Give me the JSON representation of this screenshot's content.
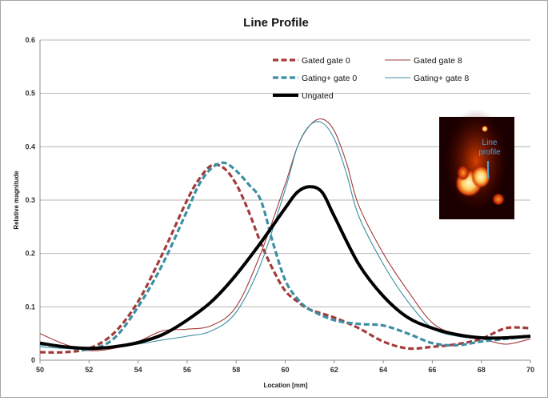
{
  "chart_data": {
    "type": "line",
    "title": "Line Profile",
    "xlabel": "Location [mm]",
    "ylabel": "Relative magnitude",
    "xlim": [
      50,
      70
    ],
    "ylim": [
      0,
      0.6
    ],
    "x_ticks": [
      "50",
      "52",
      "54",
      "56",
      "58",
      "60",
      "62",
      "64",
      "66",
      "68",
      "70"
    ],
    "y_ticks": [
      "0",
      "0.1",
      "0.2",
      "0.3",
      "0.4",
      "0.5",
      "0.6"
    ],
    "grid": "horizontal",
    "legend_placement": "top-right",
    "series": [
      {
        "name": "Gated gate 0",
        "color": "#a33b3b",
        "style": "dashed-thick",
        "points": [
          [
            50,
            0.015
          ],
          [
            51,
            0.015
          ],
          [
            52,
            0.022
          ],
          [
            53,
            0.05
          ],
          [
            54,
            0.11
          ],
          [
            55,
            0.2
          ],
          [
            56,
            0.3
          ],
          [
            56.5,
            0.34
          ],
          [
            57,
            0.365
          ],
          [
            57.5,
            0.36
          ],
          [
            58,
            0.33
          ],
          [
            58.5,
            0.28
          ],
          [
            59,
            0.22
          ],
          [
            59.5,
            0.17
          ],
          [
            60,
            0.13
          ],
          [
            60.5,
            0.11
          ],
          [
            61,
            0.095
          ],
          [
            62,
            0.08
          ],
          [
            63,
            0.06
          ],
          [
            64,
            0.035
          ],
          [
            65,
            0.022
          ],
          [
            66,
            0.025
          ],
          [
            67,
            0.03
          ],
          [
            68,
            0.04
          ],
          [
            69,
            0.06
          ],
          [
            70,
            0.06
          ]
        ]
      },
      {
        "name": "Gated gate 8",
        "color": "#a33b3b",
        "style": "thin",
        "points": [
          [
            50,
            0.05
          ],
          [
            51,
            0.03
          ],
          [
            52,
            0.018
          ],
          [
            53,
            0.022
          ],
          [
            54,
            0.035
          ],
          [
            55,
            0.055
          ],
          [
            56,
            0.058
          ],
          [
            57,
            0.065
          ],
          [
            58,
            0.1
          ],
          [
            59,
            0.2
          ],
          [
            60,
            0.33
          ],
          [
            60.5,
            0.4
          ],
          [
            61,
            0.44
          ],
          [
            61.5,
            0.452
          ],
          [
            62,
            0.43
          ],
          [
            62.5,
            0.37
          ],
          [
            63,
            0.29
          ],
          [
            64,
            0.2
          ],
          [
            65,
            0.13
          ],
          [
            66,
            0.07
          ],
          [
            67,
            0.048
          ],
          [
            68,
            0.04
          ],
          [
            69,
            0.03
          ],
          [
            70,
            0.04
          ]
        ]
      },
      {
        "name": "Gating+ gate 0",
        "color": "#3b8ea3",
        "style": "dashed-thick",
        "points": [
          [
            50,
            0.03
          ],
          [
            51,
            0.025
          ],
          [
            52,
            0.02
          ],
          [
            53,
            0.04
          ],
          [
            54,
            0.1
          ],
          [
            55,
            0.18
          ],
          [
            56,
            0.28
          ],
          [
            56.5,
            0.33
          ],
          [
            57,
            0.36
          ],
          [
            57.5,
            0.37
          ],
          [
            58,
            0.355
          ],
          [
            58.5,
            0.33
          ],
          [
            59,
            0.3
          ],
          [
            59.5,
            0.22
          ],
          [
            60,
            0.15
          ],
          [
            60.5,
            0.115
          ],
          [
            61,
            0.095
          ],
          [
            62,
            0.075
          ],
          [
            63,
            0.068
          ],
          [
            64,
            0.065
          ],
          [
            65,
            0.05
          ],
          [
            66,
            0.032
          ],
          [
            67,
            0.028
          ],
          [
            68,
            0.035
          ],
          [
            69,
            0.04
          ],
          [
            70,
            0.045
          ]
        ]
      },
      {
        "name": "Gating+ gate 8",
        "color": "#3b8ea3",
        "style": "thin",
        "points": [
          [
            50,
            0.025
          ],
          [
            51,
            0.022
          ],
          [
            52,
            0.02
          ],
          [
            53,
            0.025
          ],
          [
            54,
            0.03
          ],
          [
            55,
            0.038
          ],
          [
            56,
            0.045
          ],
          [
            57,
            0.055
          ],
          [
            58,
            0.09
          ],
          [
            59,
            0.18
          ],
          [
            60,
            0.32
          ],
          [
            60.5,
            0.4
          ],
          [
            61,
            0.44
          ],
          [
            61.5,
            0.445
          ],
          [
            62,
            0.415
          ],
          [
            62.5,
            0.35
          ],
          [
            63,
            0.27
          ],
          [
            64,
            0.18
          ],
          [
            65,
            0.11
          ],
          [
            66,
            0.06
          ],
          [
            67,
            0.045
          ],
          [
            68,
            0.04
          ],
          [
            69,
            0.04
          ],
          [
            70,
            0.045
          ]
        ]
      },
      {
        "name": "Ungated",
        "color": "#000000",
        "style": "solid-thick",
        "points": [
          [
            50,
            0.032
          ],
          [
            51,
            0.025
          ],
          [
            52,
            0.022
          ],
          [
            53,
            0.025
          ],
          [
            54,
            0.033
          ],
          [
            55,
            0.048
          ],
          [
            56,
            0.075
          ],
          [
            57,
            0.11
          ],
          [
            58,
            0.16
          ],
          [
            59,
            0.22
          ],
          [
            60,
            0.285
          ],
          [
            60.5,
            0.315
          ],
          [
            61,
            0.325
          ],
          [
            61.5,
            0.315
          ],
          [
            62,
            0.27
          ],
          [
            63,
            0.18
          ],
          [
            64,
            0.12
          ],
          [
            65,
            0.08
          ],
          [
            66,
            0.06
          ],
          [
            67,
            0.048
          ],
          [
            68,
            0.042
          ],
          [
            69,
            0.042
          ],
          [
            70,
            0.045
          ]
        ]
      }
    ],
    "inset": {
      "label_line1": "Line",
      "label_line2": "profile"
    }
  }
}
